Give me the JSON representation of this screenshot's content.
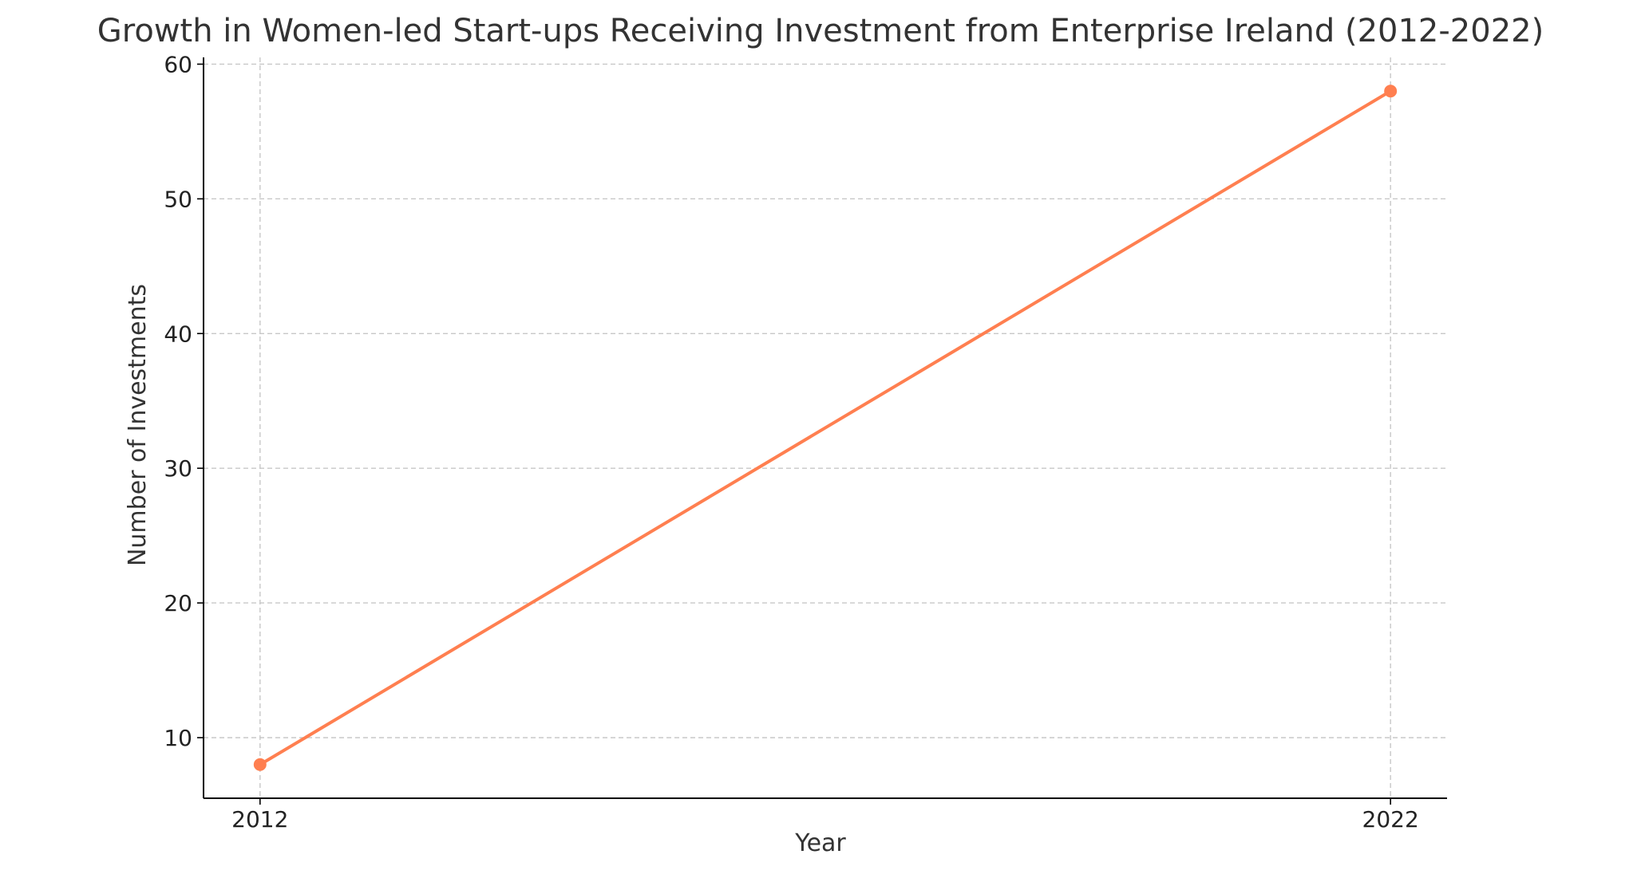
{
  "chart_data": {
    "type": "line",
    "title": "Growth in Women-led Start-ups Receiving Investment from Enterprise Ireland (2012-2022)",
    "xlabel": "Year",
    "ylabel": "Number of Investments",
    "x": [
      2012,
      2022
    ],
    "x_tick_labels": [
      "2012",
      "2022"
    ],
    "y_ticks": [
      10,
      20,
      30,
      40,
      50,
      60
    ],
    "y_tick_labels": [
      "10",
      "20",
      "30",
      "40",
      "50",
      "60"
    ],
    "ylim": [
      5.5,
      60.5
    ],
    "xlim": [
      2011.5,
      2022.5
    ],
    "grid": true,
    "series": [
      {
        "values": [
          8,
          58
        ],
        "color": "#ff7f50",
        "marker": "circle"
      }
    ]
  }
}
